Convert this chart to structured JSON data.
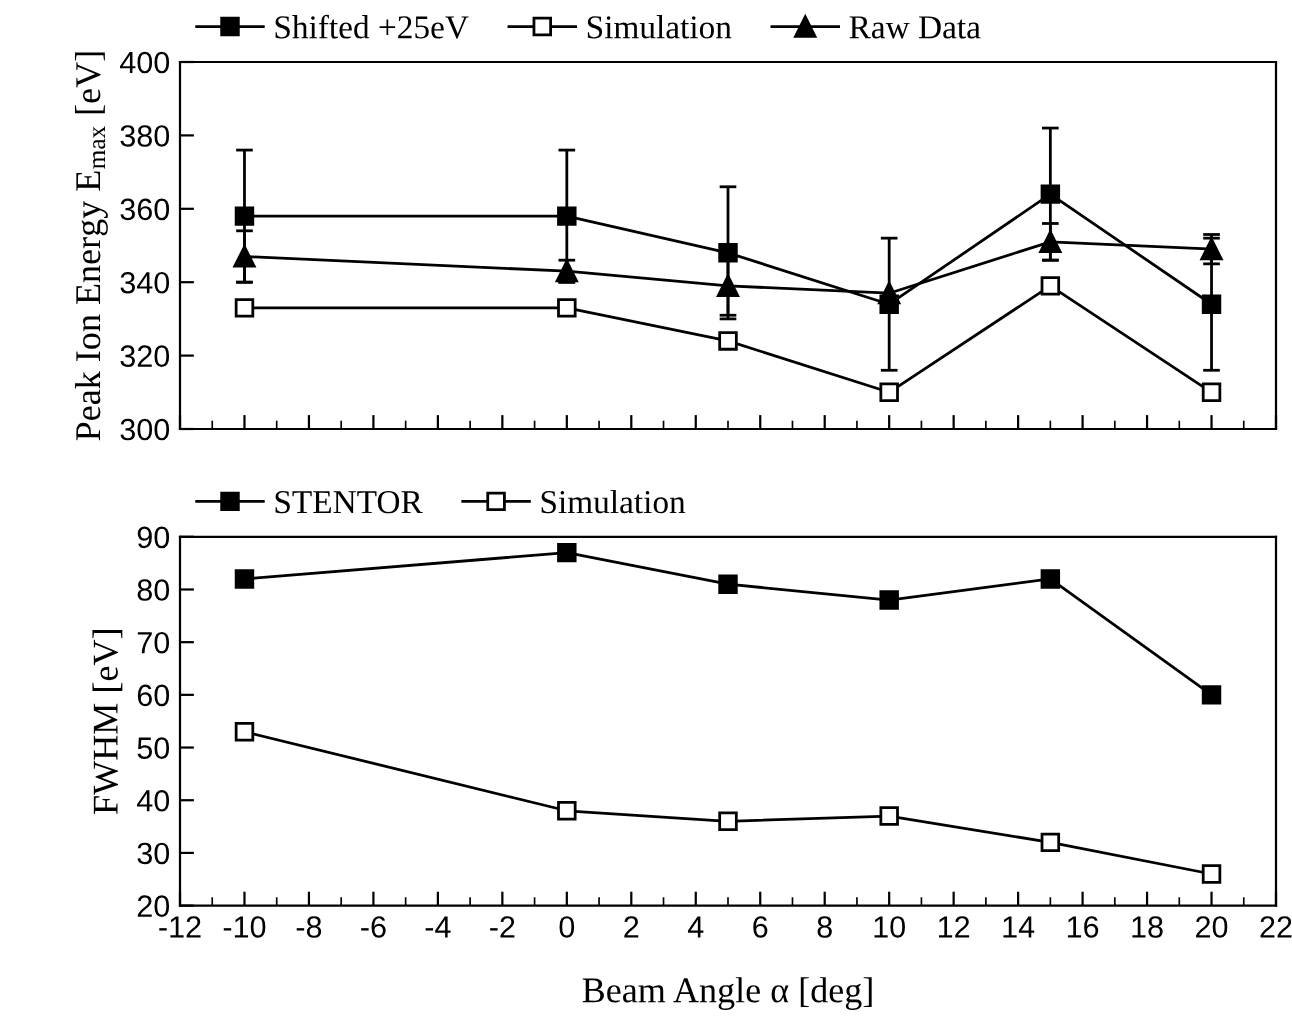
{
  "chart_data": [
    {
      "type": "line",
      "ylabel": "Peak Ion Energy E$_{max}$ [eV]",
      "x": [
        -10,
        0,
        5,
        10,
        15,
        20
      ],
      "xlim": [
        -12,
        22
      ],
      "xticks": [
        -12,
        -10,
        -8,
        -6,
        -4,
        -2,
        0,
        2,
        4,
        6,
        8,
        10,
        12,
        14,
        16,
        18,
        20,
        22
      ],
      "ylim": [
        300,
        400
      ],
      "yticks": [
        300,
        320,
        340,
        360,
        380,
        400
      ],
      "tick_labels": "y",
      "legend": "top",
      "grid": false,
      "line_style": "solid",
      "series": [
        {
          "name": "Shifted +25eV",
          "color": "#000000",
          "marker": "square",
          "values": [
            358,
            358,
            348,
            334,
            364,
            334
          ],
          "errors": [
            18,
            18,
            18,
            18,
            18,
            18
          ]
        },
        {
          "name": "Simulation",
          "color": "#000000",
          "marker": "square",
          "values": [
            333,
            333,
            324,
            310,
            339,
            310
          ]
        },
        {
          "name": "Raw Data",
          "color": "#000000",
          "marker": "triangle",
          "values": [
            347,
            343,
            339,
            337,
            351,
            349
          ],
          "errors": [
            7,
            3,
            8,
            null,
            5,
            4
          ]
        }
      ]
    },
    {
      "type": "line",
      "xlabel": "Beam Angle α [deg]",
      "ylabel": "FWHM [eV]",
      "x": [
        -10,
        0,
        5,
        10,
        15,
        20
      ],
      "xlim": [
        -12,
        22
      ],
      "xticks": [
        -12,
        -10,
        -8,
        -6,
        -4,
        -2,
        0,
        2,
        4,
        6,
        8,
        10,
        12,
        14,
        16,
        18,
        20,
        22
      ],
      "ylim": [
        20,
        90
      ],
      "yticks": [
        20,
        30,
        40,
        50,
        60,
        70,
        80,
        90
      ],
      "legend": "top",
      "grid": false,
      "line_style": "solid",
      "series": [
        {
          "name": "STENTOR",
          "color": "#000000",
          "marker": "square",
          "values": [
            82,
            87,
            81,
            78,
            82,
            60
          ]
        },
        {
          "name": "Simulation",
          "color": "#000000",
          "marker": "square",
          "values": [
            53,
            38,
            36,
            37,
            32,
            26
          ]
        }
      ]
    }
  ]
}
